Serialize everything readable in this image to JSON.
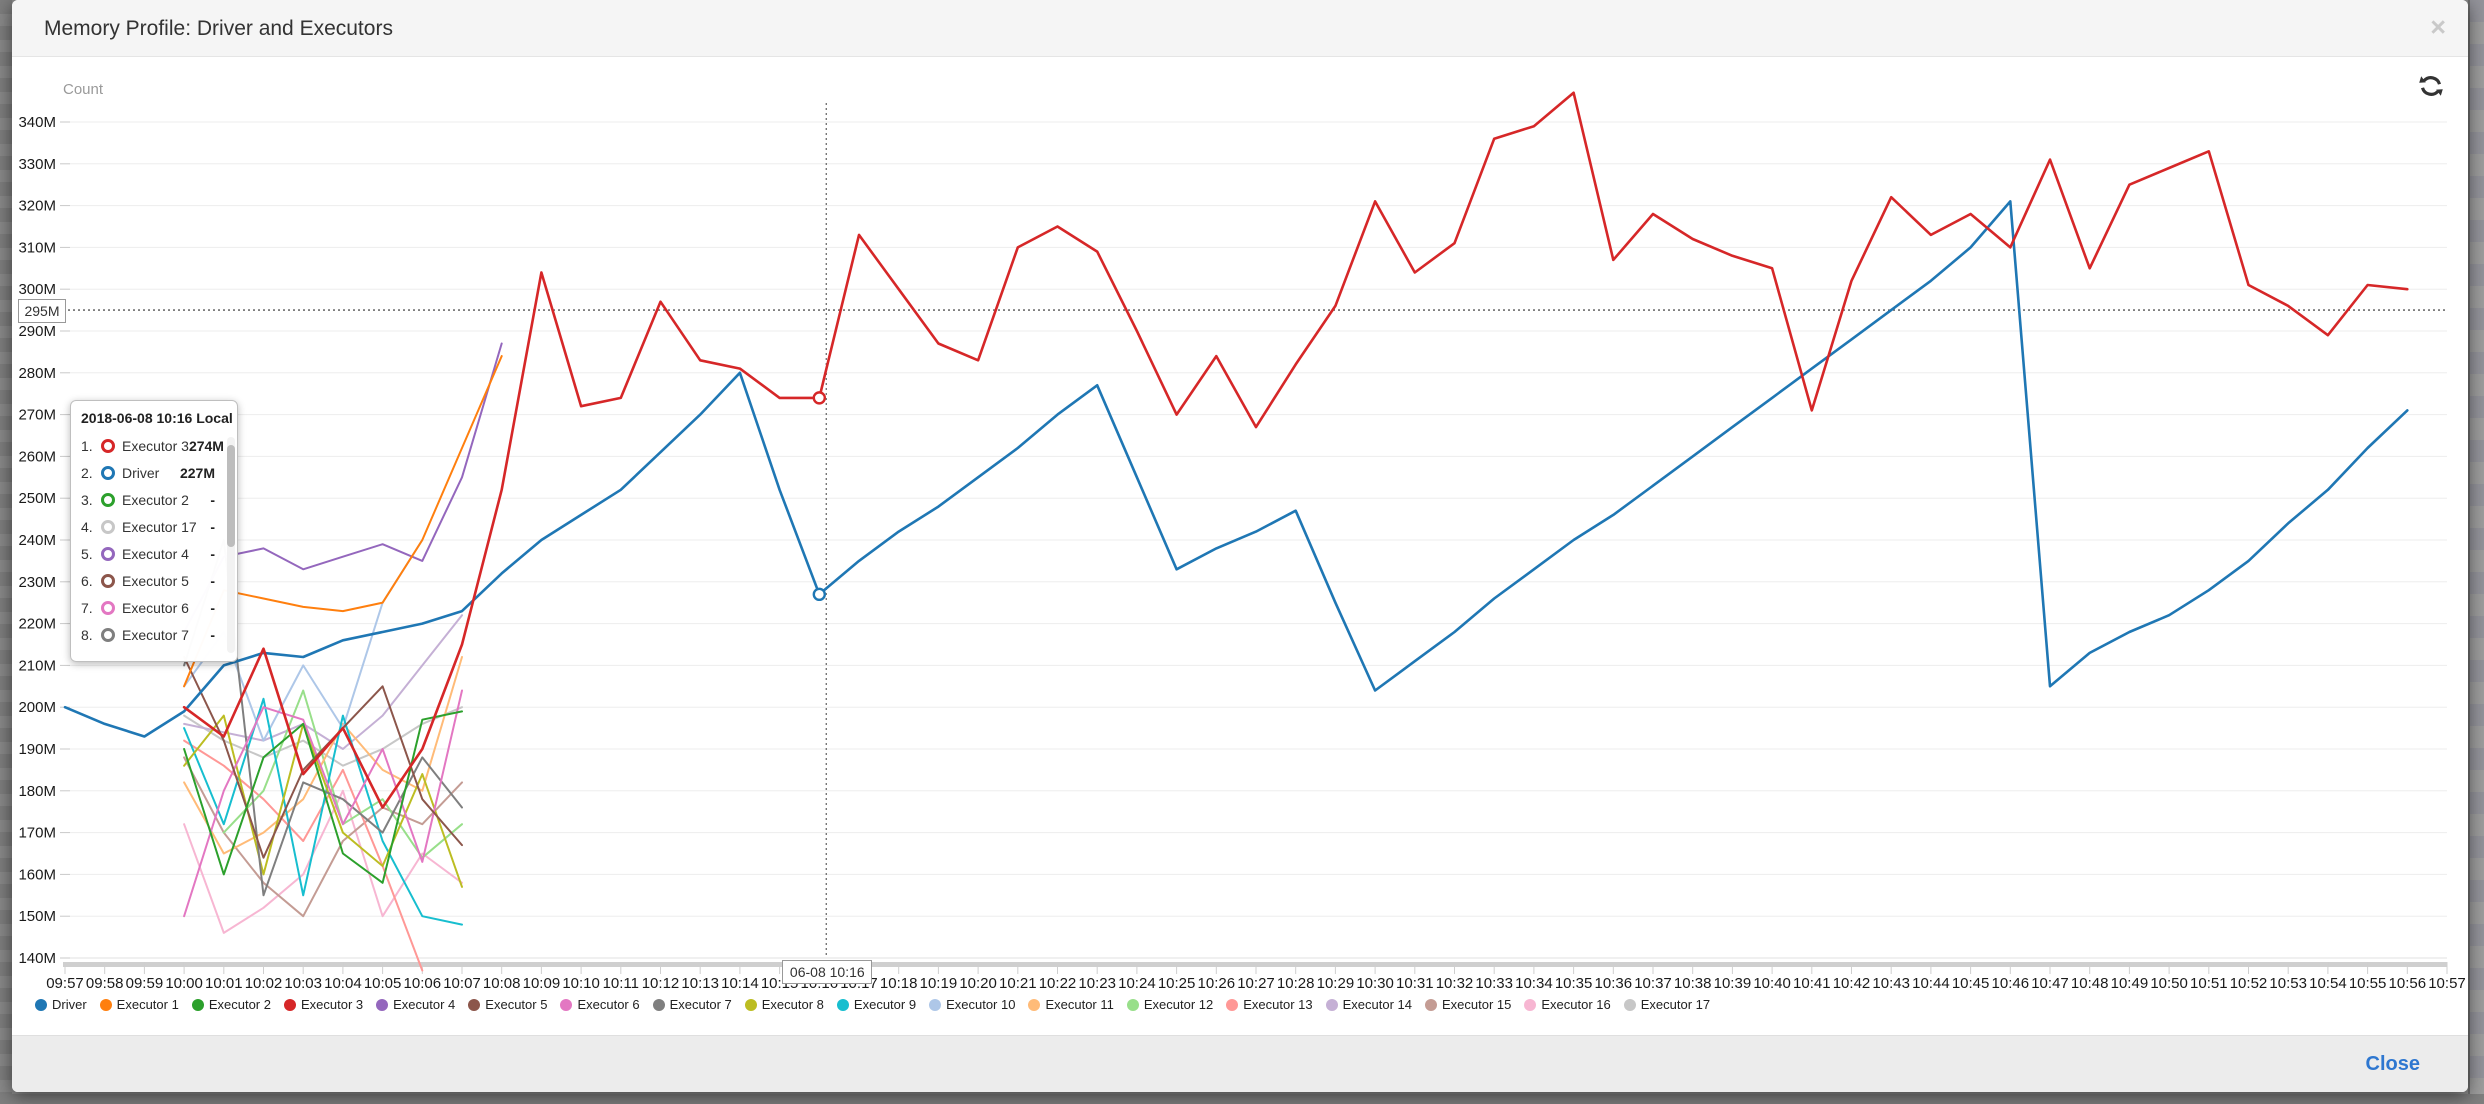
{
  "modal": {
    "title": "Memory Profile: Driver and Executors",
    "close_icon": "×",
    "footer": {
      "close_label": "Close"
    }
  },
  "chart": {
    "y_axis_title": "Count",
    "marker_line": {
      "label": "295M",
      "value": 295
    },
    "crosshair": {
      "label": "06-08 10:16",
      "x": "10:16"
    },
    "refresh_icon": "refresh-icon"
  },
  "tooltip": {
    "title": "2018-06-08 10:16 Local",
    "rows": [
      {
        "rank": "1.",
        "name": "Executor 3",
        "color": "#d62728",
        "value": "274M"
      },
      {
        "rank": "2.",
        "name": "Driver",
        "color": "#1f77b4",
        "value": "227M"
      },
      {
        "rank": "3.",
        "name": "Executor 2",
        "color": "#2ca02c",
        "value": "-"
      },
      {
        "rank": "4.",
        "name": "Executor 17",
        "color": "#c7c7c7",
        "value": "-"
      },
      {
        "rank": "5.",
        "name": "Executor 4",
        "color": "#9467bd",
        "value": "-"
      },
      {
        "rank": "6.",
        "name": "Executor 5",
        "color": "#8c564b",
        "value": "-"
      },
      {
        "rank": "7.",
        "name": "Executor 6",
        "color": "#e377c2",
        "value": "-"
      },
      {
        "rank": "8.",
        "name": "Executor 7",
        "color": "#7f7f7f",
        "value": "-"
      }
    ]
  },
  "legend": {
    "items": [
      {
        "label": "Driver",
        "color": "#1f77b4"
      },
      {
        "label": "Executor 1",
        "color": "#ff7f0e"
      },
      {
        "label": "Executor 2",
        "color": "#2ca02c"
      },
      {
        "label": "Executor 3",
        "color": "#d62728"
      },
      {
        "label": "Executor 4",
        "color": "#9467bd"
      },
      {
        "label": "Executor 5",
        "color": "#8c564b"
      },
      {
        "label": "Executor 6",
        "color": "#e377c2"
      },
      {
        "label": "Executor 7",
        "color": "#7f7f7f"
      },
      {
        "label": "Executor 8",
        "color": "#bcbd22"
      },
      {
        "label": "Executor 9",
        "color": "#17becf"
      },
      {
        "label": "Executor 10",
        "color": "#aec7e8"
      },
      {
        "label": "Executor 11",
        "color": "#ffbb78"
      },
      {
        "label": "Executor 12",
        "color": "#98df8a"
      },
      {
        "label": "Executor 13",
        "color": "#ff9896"
      },
      {
        "label": "Executor 14",
        "color": "#c5b0d5"
      },
      {
        "label": "Executor 15",
        "color": "#c49c94"
      },
      {
        "label": "Executor 16",
        "color": "#f7b6d2"
      },
      {
        "label": "Executor 17",
        "color": "#c7c7c7"
      }
    ]
  },
  "chart_data": {
    "type": "line",
    "title": "Memory Profile: Driver and Executors",
    "xlabel": "",
    "ylabel": "Count",
    "ylim": [
      140,
      340
    ],
    "y_tick_step": 10,
    "y_unit": "M",
    "grid": "horizontal",
    "legend_position": "bottom",
    "x": [
      "09:57",
      "09:58",
      "09:59",
      "10:00",
      "10:01",
      "10:02",
      "10:03",
      "10:04",
      "10:05",
      "10:06",
      "10:07",
      "10:08",
      "10:09",
      "10:10",
      "10:11",
      "10:12",
      "10:13",
      "10:14",
      "10:15",
      "10:16",
      "10:17",
      "10:18",
      "10:19",
      "10:20",
      "10:21",
      "10:22",
      "10:23",
      "10:24",
      "10:25",
      "10:26",
      "10:27",
      "10:28",
      "10:29",
      "10:30",
      "10:31",
      "10:32",
      "10:33",
      "10:34",
      "10:35",
      "10:36",
      "10:37",
      "10:38",
      "10:39",
      "10:40",
      "10:41",
      "10:42",
      "10:43",
      "10:44",
      "10:45",
      "10:46",
      "10:47",
      "10:48",
      "10:49",
      "10:50",
      "10:51",
      "10:52",
      "10:53",
      "10:54",
      "10:55",
      "10:56",
      "10:57"
    ],
    "value_unit_note": "values in MB (M), estimated from gridlines",
    "series": [
      {
        "name": "Executor 17",
        "color": "#c7c7c7",
        "start_index": 3,
        "values": [
          198,
          192,
          188,
          192,
          186,
          190,
          196,
          200
        ]
      },
      {
        "name": "Executor 16",
        "color": "#f7b6d2",
        "start_index": 3,
        "values": [
          172,
          146,
          152,
          160,
          180,
          150,
          165,
          158
        ]
      },
      {
        "name": "Executor 15",
        "color": "#c49c94",
        "start_index": 3,
        "values": [
          188,
          170,
          158,
          150,
          168,
          176,
          172,
          182
        ]
      },
      {
        "name": "Executor 14",
        "color": "#c5b0d5",
        "start_index": 3,
        "values": [
          196,
          194,
          192,
          196,
          190,
          198,
          210,
          222
        ]
      },
      {
        "name": "Executor 13",
        "color": "#ff9896",
        "start_index": 3,
        "values": [
          192,
          186,
          178,
          168,
          185,
          162,
          137
        ]
      },
      {
        "name": "Executor 12",
        "color": "#98df8a",
        "start_index": 4,
        "values": [
          170,
          180,
          204,
          172,
          178,
          164,
          172
        ]
      },
      {
        "name": "Executor 11",
        "color": "#ffbb78",
        "start_index": 3,
        "values": [
          182,
          165,
          170,
          178,
          196,
          185,
          180,
          212
        ]
      },
      {
        "name": "Executor 10",
        "color": "#aec7e8",
        "start_index": 3,
        "values": [
          205,
          218,
          192,
          210,
          195,
          225,
          240
        ]
      },
      {
        "name": "Executor 9",
        "color": "#17becf",
        "start_index": 3,
        "values": [
          195,
          172,
          202,
          155,
          198,
          168,
          150,
          148
        ]
      },
      {
        "name": "Executor 8",
        "color": "#bcbd22",
        "start_index": 3,
        "values": [
          186,
          198,
          160,
          196,
          170,
          162,
          184,
          157
        ]
      },
      {
        "name": "Executor 7",
        "color": "#7f7f7f",
        "start_index": 3,
        "values": [
          210,
          240,
          155,
          182,
          178,
          170,
          188,
          176
        ]
      },
      {
        "name": "Executor 6",
        "color": "#e377c2",
        "start_index": 3,
        "values": [
          150,
          180,
          200,
          197,
          172,
          190,
          163,
          204
        ]
      },
      {
        "name": "Executor 5",
        "color": "#8c564b",
        "start_index": 3,
        "values": [
          212,
          192,
          164,
          185,
          195,
          205,
          178,
          167
        ]
      },
      {
        "name": "Executor 4",
        "color": "#9467bd",
        "start_index": 3,
        "values": [
          218,
          236,
          238,
          233,
          236,
          239,
          235,
          255,
          287
        ]
      },
      {
        "name": "Executor 2",
        "color": "#2ca02c",
        "start_index": 3,
        "values": [
          190,
          160,
          188,
          196,
          165,
          158,
          197,
          199
        ]
      },
      {
        "name": "Executor 1",
        "color": "#ff7f0e",
        "start_index": 3,
        "values": [
          205,
          228,
          226,
          224,
          223,
          225,
          240,
          262,
          284
        ]
      },
      {
        "name": "Driver",
        "color": "#1f77b4",
        "start_index": 0,
        "values": [
          200,
          196,
          193,
          199,
          210,
          213,
          212,
          216,
          218,
          220,
          223,
          232,
          240,
          246,
          252,
          261,
          270,
          280,
          252,
          227,
          235,
          242,
          248,
          255,
          262,
          270,
          277,
          255,
          233,
          238,
          242,
          247,
          225,
          204,
          211,
          218,
          226,
          233,
          240,
          246,
          253,
          260,
          267,
          274,
          281,
          288,
          295,
          302,
          310,
          321,
          205,
          213,
          218,
          222,
          228,
          235,
          244,
          252,
          262,
          271
        ]
      },
      {
        "name": "Executor 3",
        "color": "#d62728",
        "start_index": 3,
        "values": [
          200,
          193,
          214,
          184,
          195,
          176,
          190,
          215,
          252,
          304,
          272,
          274,
          297,
          283,
          281,
          274,
          274,
          313,
          300,
          287,
          283,
          310,
          315,
          309,
          290,
          270,
          284,
          267,
          282,
          296,
          321,
          304,
          311,
          336,
          339,
          347,
          307,
          318,
          312,
          308,
          305,
          271,
          302,
          322,
          313,
          318,
          310,
          331,
          305,
          325,
          329,
          333,
          301,
          296,
          289,
          301,
          300
        ]
      }
    ],
    "markers": [
      {
        "series": "Executor 3",
        "x": "10:16",
        "value": 274
      },
      {
        "series": "Driver",
        "x": "10:16",
        "value": 227
      }
    ]
  }
}
